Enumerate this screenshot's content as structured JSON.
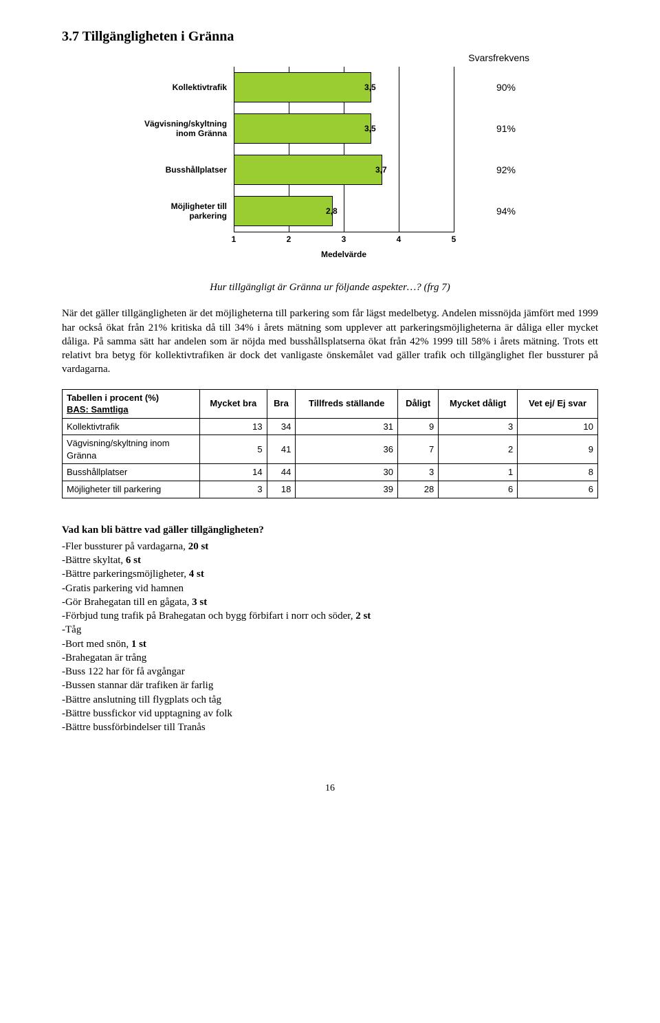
{
  "section_title": "3.7  Tillgängligheten i Gränna",
  "chart": {
    "type": "bar",
    "svarsfrekvens_label": "Svarsfrekvens",
    "x_axis_title": "Medelvärde",
    "background_color": "#ffffff",
    "bar_color": "#9acd32",
    "bar_border_color": "#000000",
    "grid_color": "#000000",
    "xlim": [
      1,
      5
    ],
    "xtick_step": 1,
    "xticks": [
      1,
      2,
      3,
      4,
      5
    ],
    "label_font": "Arial",
    "label_fontsize": 12,
    "label_fontweight": "bold",
    "rows": [
      {
        "label": "Kollektivtrafik",
        "value": 3.5,
        "value_display": "3,5",
        "pct": "90%"
      },
      {
        "label": "Vägvisning/skyltning inom Gränna",
        "value": 3.5,
        "value_display": "3,5",
        "pct": "91%"
      },
      {
        "label": "Busshållplatser",
        "value": 3.7,
        "value_display": "3,7",
        "pct": "92%"
      },
      {
        "label": "Möjligheter till parkering",
        "value": 2.8,
        "value_display": "2,8",
        "pct": "94%"
      }
    ]
  },
  "chart_caption": "Hur tillgängligt är Gränna ur följande aspekter…? (frg 7)",
  "body_paragraph": "När det gäller tillgängligheten är det möjligheterna till parkering som får lägst medelbetyg. Andelen missnöjda jämfört med 1999 har också ökat från 21% kritiska då till 34% i årets mätning som upplever att parkeringsmöjligheterna är dåliga eller mycket dåliga. På samma sätt har andelen som är nöjda med busshållsplatserna ökat från 42% 1999 till 58% i årets mätning. Trots ett relativt bra betyg för kollektivtrafiken är dock det vanligaste önskemålet vad gäller trafik och tillgänglighet fler bussturer på vardagarna.",
  "table": {
    "header_row1": "Tabellen i procent (%)",
    "header_row2": "BAS: Samtliga",
    "columns": [
      "Mycket bra",
      "Bra",
      "Tillfreds ställande",
      "Dåligt",
      "Mycket dåligt",
      "Vet ej/ Ej svar"
    ],
    "rows": [
      {
        "label": "Kollektivtrafik",
        "cells": [
          13,
          34,
          31,
          9,
          3,
          10
        ]
      },
      {
        "label": "Vägvisning/skyltning inom Gränna",
        "cells": [
          5,
          41,
          36,
          7,
          2,
          9
        ]
      },
      {
        "label": "Busshållplatser",
        "cells": [
          14,
          44,
          30,
          3,
          1,
          8
        ]
      },
      {
        "label": "Möjligheter till parkering",
        "cells": [
          3,
          18,
          39,
          28,
          6,
          6
        ]
      }
    ]
  },
  "improvements_title": "Vad kan bli bättre vad gäller tillgängligheten?",
  "improvements": [
    "Fler bussturer på vardagarna, <b>20 st</b>",
    "Bättre skyltat, <b>6 st</b>",
    "Bättre parkeringsmöjligheter, <b>4 st</b>",
    "Gratis parkering vid hamnen",
    "Gör Brahegatan till en gågata, <b>3 st</b>",
    "Förbjud tung trafik på Brahegatan och bygg förbifart i norr och söder, <b>2 st</b>",
    "Tåg",
    "Bort med snön, <b>1 st</b>",
    "Brahegatan är trång",
    "Buss 122 har för få avgångar",
    "Bussen stannar där trafiken är farlig",
    "Bättre anslutning till flygplats och tåg",
    "Bättre bussfickor vid upptagning av folk",
    "Bättre bussförbindelser till Tranås"
  ],
  "page_number": "16"
}
